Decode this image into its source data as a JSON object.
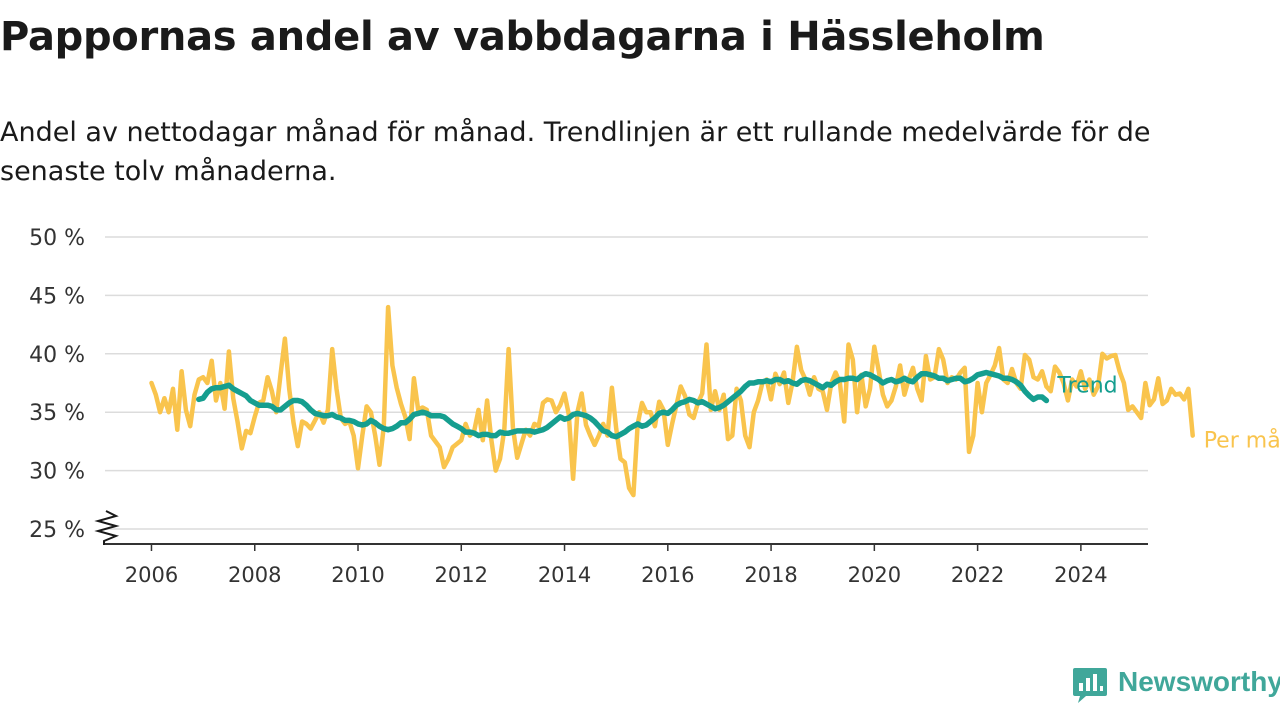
{
  "title": "Pappornas andel av vabbdagarna i Hässleholm",
  "subtitle": "Andel av nettodagar månad för månad. Trendlinjen är ett rullande medelvärde för de senaste tolv månaderna.",
  "brand": {
    "name": "Newsworthy",
    "icon": "newsworthy-logo-icon"
  },
  "colors": {
    "monthly": "#f9c44d",
    "trend": "#159e8f",
    "grid": "#dcdcdc",
    "axis": "#333333",
    "brand": "#40a79a"
  },
  "chart_data": {
    "type": "line",
    "y_axis_break": true,
    "grid": true,
    "legend": "direct labels at line ends",
    "ylim": [
      25,
      50
    ],
    "xlim": [
      2005.1,
      2025.3
    ],
    "y_ticks": [
      25,
      30,
      35,
      40,
      45,
      50
    ],
    "y_tick_labels": [
      "25 %",
      "30 %",
      "35 %",
      "40 %",
      "45 %",
      "50 %"
    ],
    "x_ticks": [
      2006,
      2008,
      2010,
      2012,
      2014,
      2016,
      2018,
      2020,
      2022,
      2024
    ],
    "x_tick_labels": [
      "2006",
      "2008",
      "2010",
      "2012",
      "2014",
      "2016",
      "2018",
      "2020",
      "2022",
      "2024"
    ],
    "x_start": 2006.0,
    "x_step": 0.08333,
    "series": [
      {
        "name": "Per månad",
        "values": [
          37.5,
          36.5,
          35.0,
          36.2,
          35.0,
          37.0,
          33.5,
          38.5,
          35.2,
          33.8,
          36.5,
          37.8,
          38.0,
          37.5,
          39.4,
          36.0,
          37.5,
          35.3,
          40.2,
          36.2,
          34.2,
          31.9,
          33.4,
          33.2,
          34.6,
          35.8,
          36.0,
          38.0,
          36.8,
          35.0,
          38.2,
          41.3,
          37.0,
          34.1,
          32.1,
          34.2,
          34.0,
          33.6,
          34.3,
          35.0,
          34.1,
          35.2,
          40.4,
          37.0,
          34.5,
          34.0,
          34.2,
          33.0,
          30.2,
          33.0,
          35.5,
          35.0,
          33.0,
          30.5,
          33.8,
          44.0,
          39.0,
          37.1,
          35.7,
          34.6,
          32.7,
          37.9,
          35.2,
          35.4,
          35.2,
          33.0,
          32.5,
          32.0,
          30.3,
          31.0,
          32.0,
          32.3,
          32.6,
          34.0,
          33.0,
          33.4,
          35.2,
          32.6,
          36.0,
          32.6,
          30.0,
          31.0,
          33.5,
          40.4,
          33.7,
          31.1,
          32.3,
          33.5,
          33.0,
          34.0,
          33.8,
          35.8,
          36.1,
          36.0,
          35.0,
          35.6,
          36.6,
          34.8,
          29.3,
          35.0,
          36.6,
          33.9,
          33.0,
          32.2,
          33.0,
          34.0,
          33.0,
          37.1,
          33.6,
          31.0,
          30.7,
          28.5,
          27.9,
          34.0,
          35.8,
          35.0,
          35.0,
          33.8,
          35.9,
          35.2,
          32.2,
          34.0,
          35.6,
          37.2,
          36.4,
          34.8,
          34.5,
          35.8,
          36.6,
          40.8,
          35.2,
          36.8,
          35.2,
          36.5,
          32.7,
          33.0,
          37.0,
          36.0,
          33.0,
          32.0,
          35.0,
          36.0,
          37.5,
          37.8,
          36.1,
          38.3,
          37.4,
          38.4,
          35.8,
          37.6,
          40.6,
          38.6,
          37.8,
          36.5,
          38.0,
          37.0,
          36.8,
          35.2,
          37.5,
          38.4,
          37.5,
          34.2,
          40.8,
          39.5,
          35.0,
          38.2,
          35.5,
          37.0,
          40.6,
          38.6,
          36.5,
          35.5,
          36.0,
          37.2,
          39.0,
          36.5,
          37.8,
          38.8,
          37.0,
          36.0,
          39.8,
          37.8,
          38.0,
          40.4,
          39.5,
          37.5,
          38.0,
          37.8,
          38.4,
          38.8,
          31.6,
          33.0,
          37.5,
          35.0,
          37.5,
          38.2,
          39.0,
          40.5,
          37.8,
          37.5,
          38.7,
          37.5,
          37.0,
          39.9,
          39.5,
          38.0,
          37.8,
          38.5,
          37.2,
          36.8,
          38.9,
          38.4,
          37.5,
          36.0,
          37.8,
          37.2,
          38.5,
          37.0,
          37.8,
          36.5,
          37.2,
          40.0,
          39.6,
          39.8,
          39.9,
          38.5,
          37.5,
          35.2,
          35.5,
          35.0,
          34.5,
          37.5,
          35.6,
          36.1,
          37.9,
          35.7,
          36.0,
          37.0,
          36.5,
          36.6,
          36.1,
          37.0,
          33.0
        ]
      },
      {
        "name": "Trend",
        "x_start": 2006.9167,
        "values": [
          36.1,
          36.2,
          36.7,
          37.0,
          37.1,
          37.1,
          37.2,
          37.3,
          37.0,
          36.8,
          36.6,
          36.4,
          36.0,
          35.8,
          35.6,
          35.6,
          35.6,
          35.5,
          35.2,
          35.2,
          35.5,
          35.8,
          36.0,
          36.0,
          35.9,
          35.6,
          35.2,
          34.9,
          34.8,
          34.7,
          34.7,
          34.8,
          34.6,
          34.5,
          34.3,
          34.3,
          34.2,
          34.0,
          33.9,
          34.0,
          34.3,
          34.1,
          33.8,
          33.6,
          33.5,
          33.6,
          33.8,
          34.1,
          34.1,
          34.4,
          34.8,
          34.9,
          35.0,
          34.9,
          34.7,
          34.7,
          34.7,
          34.6,
          34.3,
          34.0,
          33.8,
          33.6,
          33.3,
          33.3,
          33.2,
          33.0,
          33.1,
          33.1,
          33.0,
          33.0,
          33.3,
          33.2,
          33.2,
          33.3,
          33.4,
          33.4,
          33.4,
          33.4,
          33.3,
          33.4,
          33.5,
          33.7,
          34.0,
          34.3,
          34.6,
          34.4,
          34.5,
          34.8,
          34.9,
          34.8,
          34.7,
          34.5,
          34.2,
          33.8,
          33.4,
          33.3,
          33.0,
          32.9,
          33.1,
          33.3,
          33.6,
          33.8,
          34.0,
          33.8,
          33.9,
          34.2,
          34.5,
          34.9,
          35.0,
          34.9,
          35.2,
          35.6,
          35.8,
          35.9,
          36.1,
          36.0,
          35.8,
          35.9,
          35.7,
          35.5,
          35.3,
          35.4,
          35.6,
          35.9,
          36.2,
          36.5,
          36.8,
          37.2,
          37.5,
          37.5,
          37.6,
          37.6,
          37.7,
          37.6,
          37.8,
          37.8,
          37.6,
          37.7,
          37.5,
          37.4,
          37.7,
          37.8,
          37.7,
          37.5,
          37.3,
          37.1,
          37.4,
          37.3,
          37.6,
          37.8,
          37.8,
          37.9,
          37.9,
          37.8,
          38.1,
          38.3,
          38.2,
          38.0,
          37.8,
          37.5,
          37.7,
          37.8,
          37.6,
          37.7,
          37.9,
          37.7,
          37.6,
          38.0,
          38.3,
          38.3,
          38.2,
          38.1,
          37.9,
          37.9,
          37.7,
          37.8,
          37.9,
          37.9,
          37.6,
          37.7,
          37.9,
          38.2,
          38.3,
          38.4,
          38.3,
          38.2,
          38.1,
          37.9,
          37.9,
          37.8,
          37.6,
          37.3,
          36.8,
          36.4,
          36.1,
          36.3,
          36.3,
          36.0
        ]
      }
    ]
  }
}
